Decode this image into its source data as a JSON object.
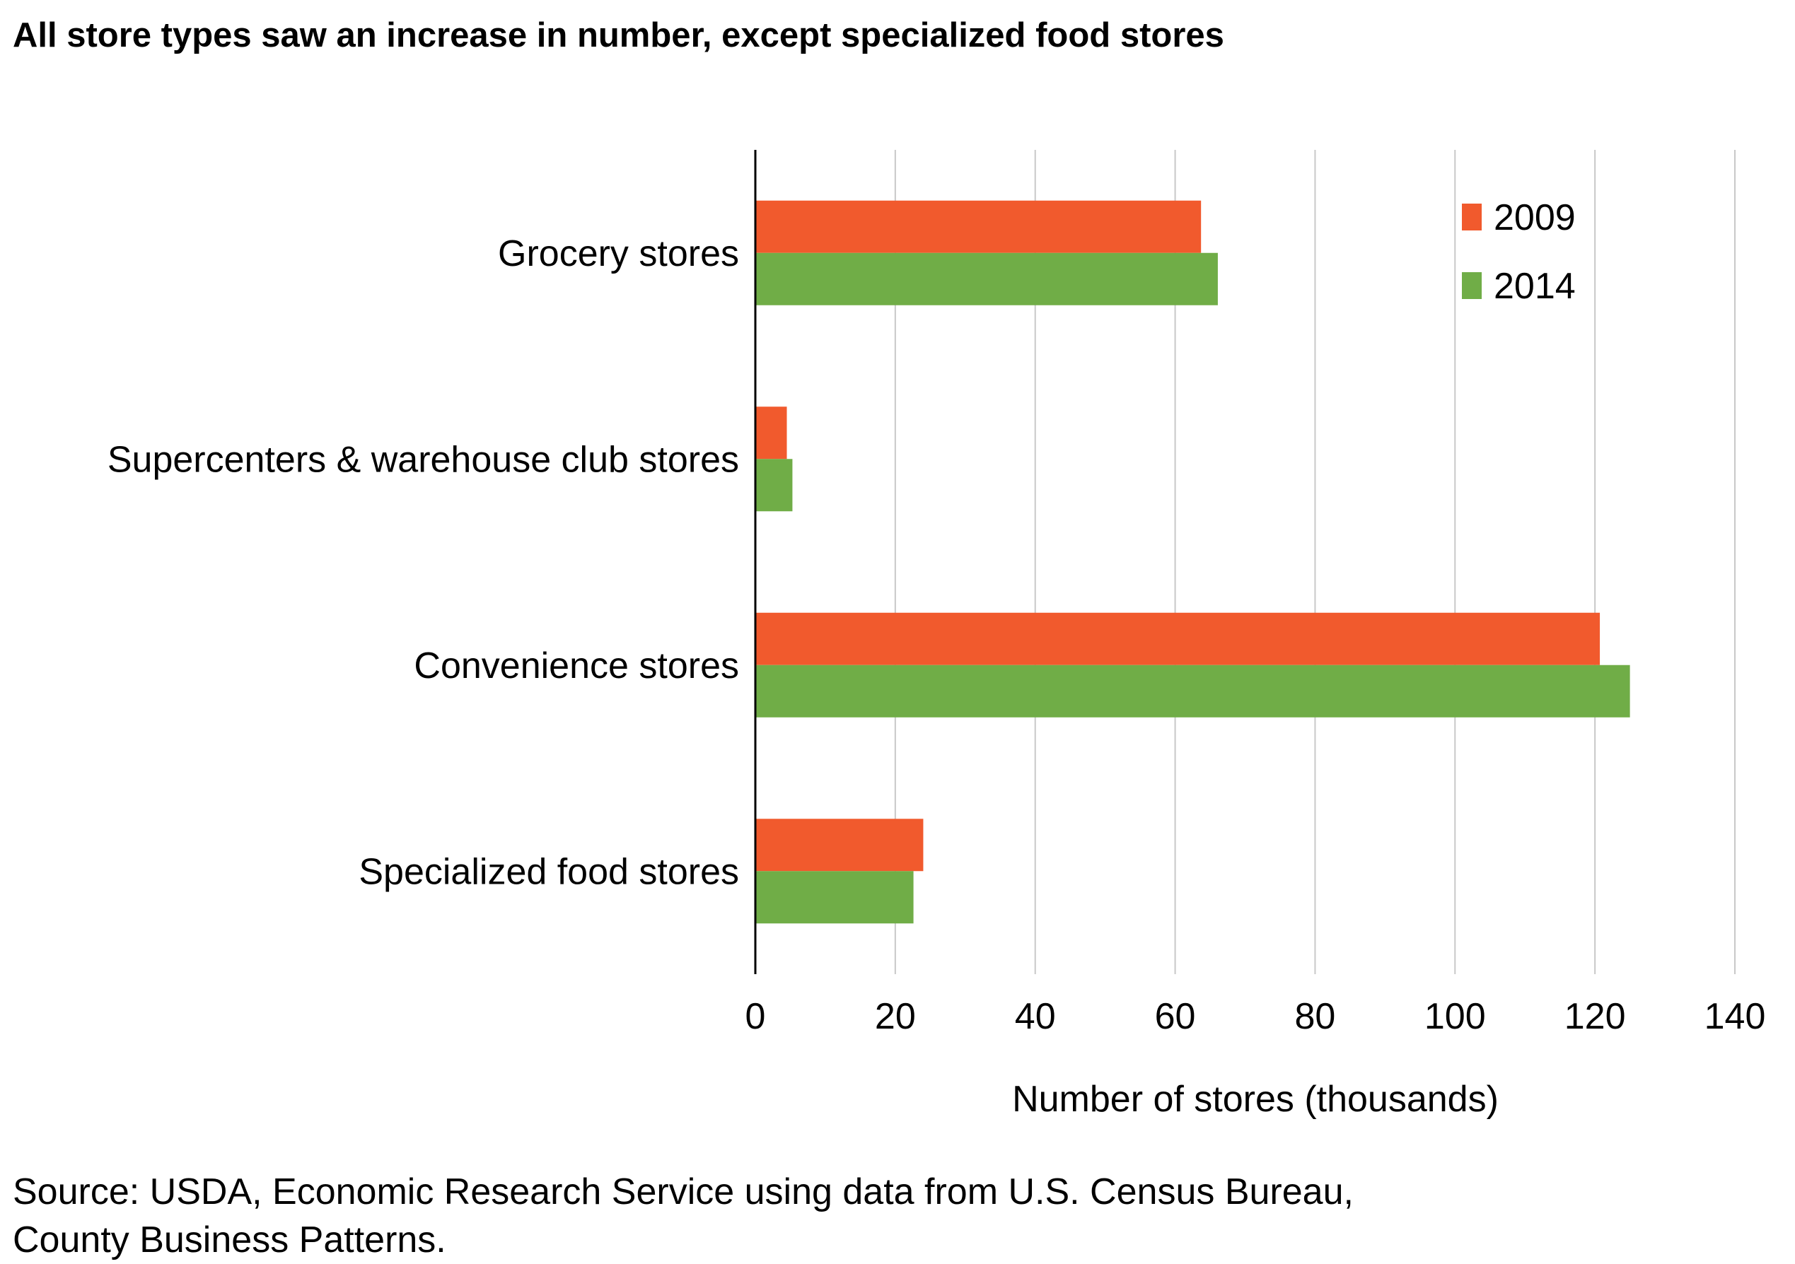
{
  "title": "All store types saw an increase in number, except specialized food stores",
  "source": [
    "Source: USDA, Economic Research Service using data from U.S. Census Bureau,",
    "County Business Patterns."
  ],
  "chart_data": {
    "type": "bar",
    "orientation": "horizontal",
    "categories": [
      "Grocery stores",
      "Supercenters & warehouse club stores",
      "Convenience stores",
      "Specialized food stores"
    ],
    "series": [
      {
        "name": "2009",
        "color": "#F15A2D",
        "values": [
          63.7,
          4.5,
          120.7,
          24.0
        ]
      },
      {
        "name": "2014",
        "color": "#70AD47",
        "values": [
          66.1,
          5.3,
          125.0,
          22.6
        ]
      }
    ],
    "xlabel": "Number of stores (thousands)",
    "ylabel": "",
    "xlim": [
      0,
      140
    ],
    "xticks": [
      0,
      20,
      40,
      60,
      80,
      100,
      120,
      140
    ],
    "grid": true,
    "legend": "top-right"
  }
}
